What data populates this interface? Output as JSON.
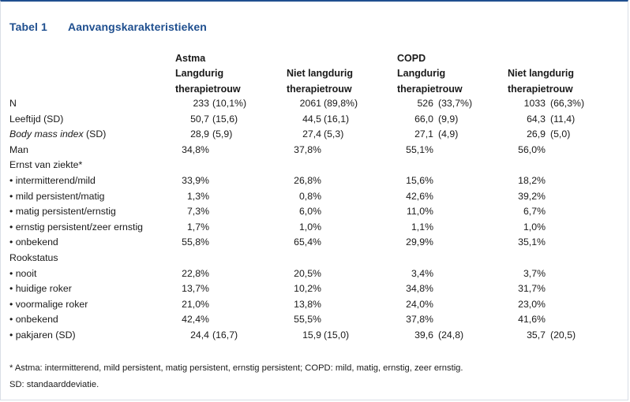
{
  "title": {
    "number": "Tabel 1",
    "text": "Aanvangskarakteristieken"
  },
  "groups": {
    "astma": "Astma",
    "copd": "COPD"
  },
  "columns": [
    {
      "line1": "Langdurig",
      "line2": "therapietrouw"
    },
    {
      "line1": "Niet langdurig",
      "line2": "therapietrouw"
    },
    {
      "line1": "Langdurig",
      "line2": "therapietrouw"
    },
    {
      "line1": "Niet langdurig",
      "line2": "therapietrouw"
    }
  ],
  "rows": [
    {
      "label": "N",
      "cells": [
        {
          "v": "233",
          "p": "(10,1%)"
        },
        {
          "v": "2061",
          "p": "(89,8%)"
        },
        {
          "v": "526",
          "p": "(33,7%)"
        },
        {
          "v": "1033",
          "p": "(66,3%)"
        }
      ]
    },
    {
      "label": "Leeftijd (SD)",
      "cells": [
        {
          "v": "50,7",
          "p": "(15,6)"
        },
        {
          "v": "44,5",
          "p": "(16,1)"
        },
        {
          "v": "66,0",
          "p": "(9,9)"
        },
        {
          "v": "64,3",
          "p": "(11,4)"
        }
      ]
    },
    {
      "label": "Body mass index",
      "label_suffix": " (SD)",
      "italic": true,
      "cells": [
        {
          "v": "28,9",
          "p": "(5,9)"
        },
        {
          "v": "27,4",
          "p": "(5,3)"
        },
        {
          "v": "27,1",
          "p": "(4,9)"
        },
        {
          "v": "26,9",
          "p": "(5,0)"
        }
      ]
    },
    {
      "label": "Man",
      "cells": [
        {
          "v": "34,8%"
        },
        {
          "v": "37,8%"
        },
        {
          "v": "55,1%"
        },
        {
          "v": "56,0%"
        }
      ]
    },
    {
      "label": "Ernst van ziekte*",
      "cells": []
    },
    {
      "label": "• intermitterend/mild",
      "cells": [
        {
          "v": "33,9%"
        },
        {
          "v": "26,8%"
        },
        {
          "v": "15,6%"
        },
        {
          "v": "18,2%"
        }
      ]
    },
    {
      "label": "• mild persistent/matig",
      "cells": [
        {
          "v": "1,3%"
        },
        {
          "v": "0,8%"
        },
        {
          "v": "42,6%"
        },
        {
          "v": "39,2%"
        }
      ]
    },
    {
      "label": "• matig persistent/ernstig",
      "cells": [
        {
          "v": "7,3%"
        },
        {
          "v": "6,0%"
        },
        {
          "v": "11,0%"
        },
        {
          "v": "6,7%"
        }
      ]
    },
    {
      "label": "• ernstig persistent/zeer ernstig",
      "cells": [
        {
          "v": "1,7%"
        },
        {
          "v": "1,0%"
        },
        {
          "v": "1,1%"
        },
        {
          "v": "1,0%"
        }
      ]
    },
    {
      "label": "• onbekend",
      "cells": [
        {
          "v": "55,8%"
        },
        {
          "v": "65,4%"
        },
        {
          "v": "29,9%"
        },
        {
          "v": "35,1%"
        }
      ]
    },
    {
      "label": "Rookstatus",
      "cells": []
    },
    {
      "label": "• nooit",
      "cells": [
        {
          "v": "22,8%"
        },
        {
          "v": "20,5%"
        },
        {
          "v": "3,4%"
        },
        {
          "v": "3,7%"
        }
      ]
    },
    {
      "label": "• huidige roker",
      "cells": [
        {
          "v": "13,7%"
        },
        {
          "v": "10,2%"
        },
        {
          "v": "34,8%"
        },
        {
          "v": "31,7%"
        }
      ]
    },
    {
      "label": "• voormalige roker",
      "cells": [
        {
          "v": "21,0%"
        },
        {
          "v": "13,8%"
        },
        {
          "v": "24,0%"
        },
        {
          "v": "23,0%"
        }
      ]
    },
    {
      "label": "• onbekend",
      "cells": [
        {
          "v": "42,4%"
        },
        {
          "v": "55,5%"
        },
        {
          "v": "37,8%"
        },
        {
          "v": "41,6%"
        }
      ]
    },
    {
      "label": "• pakjaren (SD)",
      "cells": [
        {
          "v": "24,4",
          "p": "(16,7)"
        },
        {
          "v": "15,9",
          "p": "(15,0)"
        },
        {
          "v": "39,6",
          "p": "(24,8)"
        },
        {
          "v": "35,7",
          "p": "(20,5)"
        }
      ]
    }
  ],
  "footnotes": [
    "* Astma: intermitterend, mild persistent, matig persistent, ernstig persistent; COPD: mild, matig, ernstig, zeer ernstig.",
    "SD: standaarddeviatie."
  ],
  "colors": {
    "title": "#1f4f8f",
    "text": "#1a1a1a",
    "border": "#d9dee6"
  }
}
